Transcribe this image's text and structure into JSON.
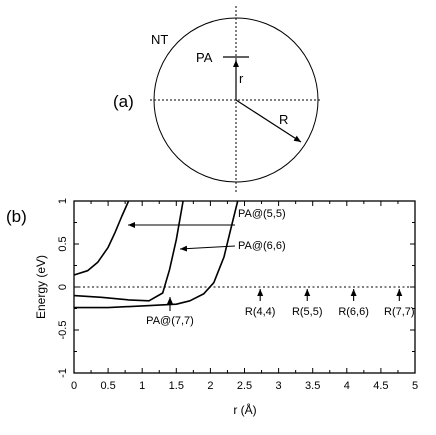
{
  "panel_a": {
    "label": "(a)",
    "nt_label": "NT",
    "pa_label": "PA",
    "r_label": "r",
    "R_label": "R"
  },
  "chart_data": {
    "type": "line",
    "panel_label": "(b)",
    "xlabel": "r (Å)",
    "ylabel": "Energy (eV)",
    "xlim": [
      0,
      5
    ],
    "ylim": [
      -1,
      1
    ],
    "xticks": [
      "0",
      "0.5",
      "1",
      "1.5",
      "2",
      "2.5",
      "3",
      "3.5",
      "4",
      "4.5",
      "5"
    ],
    "yticks": [
      "1",
      "0.5",
      "0",
      "-0.5",
      "-1"
    ],
    "reference_line": {
      "y": 0,
      "style": "dotted"
    },
    "series": [
      {
        "name": "PA@(5,5)",
        "x": [
          0.0,
          0.2,
          0.35,
          0.5,
          0.6,
          0.7,
          0.8
        ],
        "y": [
          0.14,
          0.19,
          0.29,
          0.46,
          0.63,
          0.82,
          1.0
        ]
      },
      {
        "name": "PA@(6,6)",
        "x": [
          0.0,
          0.4,
          0.8,
          1.1,
          1.3,
          1.4,
          1.5,
          1.6
        ],
        "y": [
          -0.1,
          -0.12,
          -0.15,
          -0.16,
          -0.07,
          0.2,
          0.55,
          1.0
        ]
      },
      {
        "name": "PA@(7,7)",
        "x": [
          0.0,
          0.5,
          1.0,
          1.5,
          1.7,
          1.9,
          2.05,
          2.2,
          2.3,
          2.4
        ],
        "y": [
          -0.24,
          -0.24,
          -0.22,
          -0.2,
          -0.16,
          -0.08,
          0.05,
          0.35,
          0.68,
          1.0
        ]
      }
    ],
    "annotations": [
      {
        "text": "PA@(5,5)",
        "series": "PA@(5,5)"
      },
      {
        "text": "PA@(6,6)",
        "series": "PA@(6,6)"
      },
      {
        "text": "PA@(7,7)",
        "series": "PA@(7,7)"
      }
    ],
    "radius_markers": [
      {
        "text": "R(4,4)",
        "x": 2.73
      },
      {
        "text": "R(5,5)",
        "x": 3.42
      },
      {
        "text": "R(6,6)",
        "x": 4.1
      },
      {
        "text": "R(7,7)",
        "x": 4.77
      }
    ]
  }
}
